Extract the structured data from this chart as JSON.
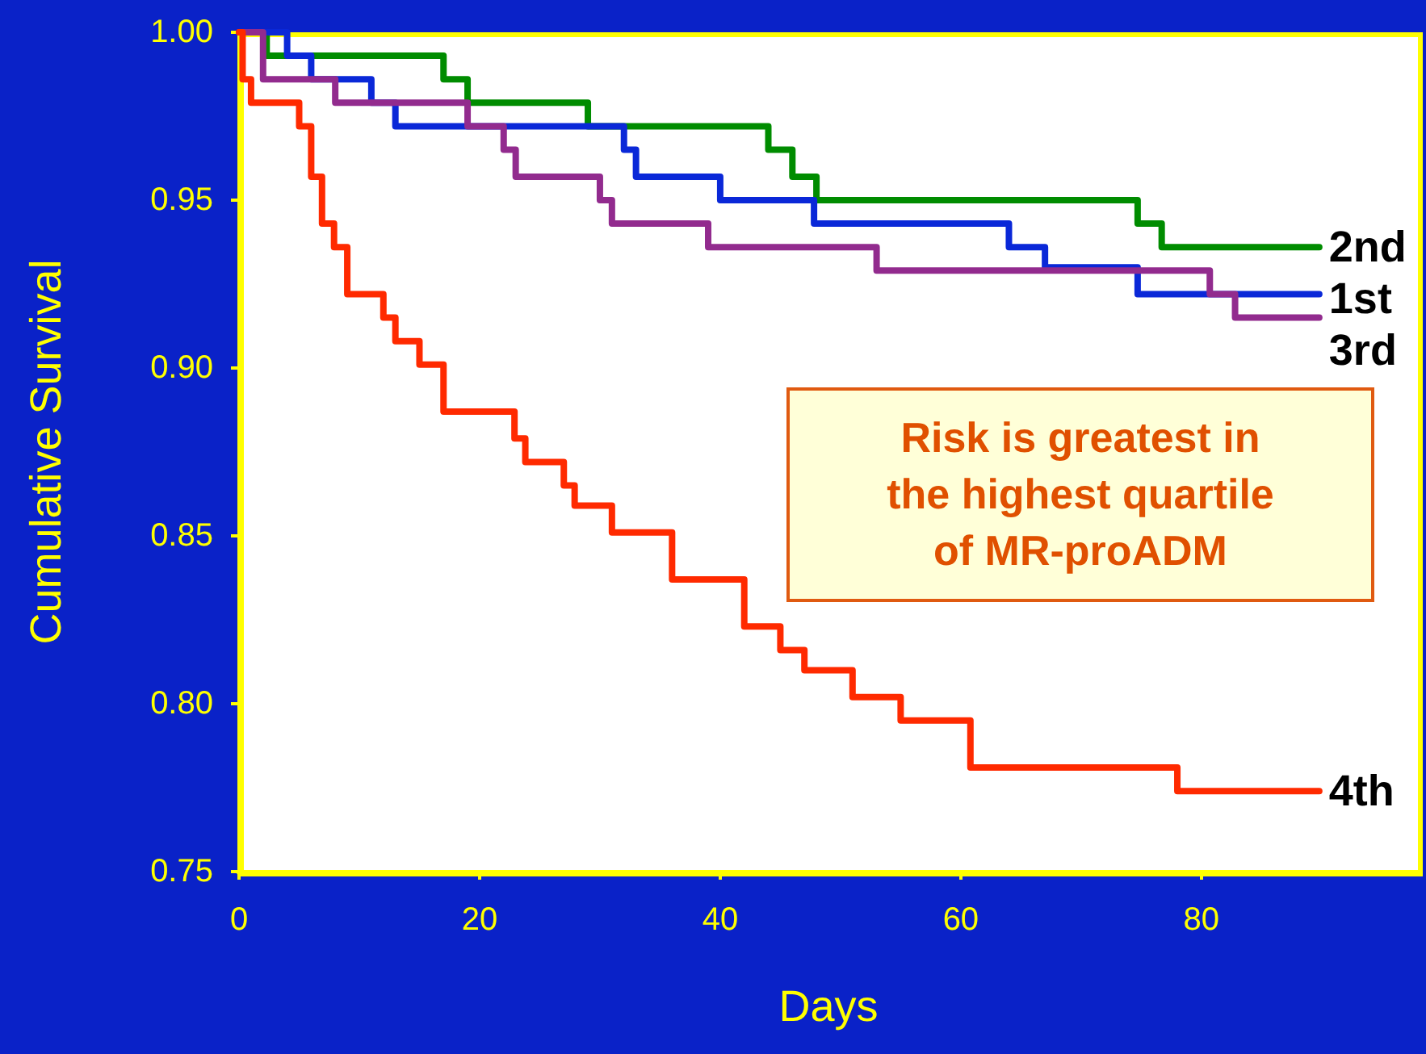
{
  "chart_data": {
    "type": "step",
    "xlabel": "Days",
    "ylabel": "Cumulative Survival",
    "annotations": [
      "Risk is greatest in\nthe highest quartile\nof MR-proADM"
    ],
    "xlim": [
      0,
      98
    ],
    "xticks": [
      0,
      20,
      40,
      60,
      80
    ],
    "ylim": [
      0.75,
      1.0
    ],
    "yticks": [
      {
        "value": 0.75,
        "label": "0.75"
      },
      {
        "value": 0.8,
        "label": "0.80"
      },
      {
        "value": 0.85,
        "label": "0.85"
      },
      {
        "value": 0.9,
        "label": "0.90"
      },
      {
        "value": 0.95,
        "label": "0.95"
      },
      {
        "value": 1.0,
        "label": "1.00"
      }
    ],
    "grid": false,
    "legend": false,
    "marker": "none",
    "line_style": "solid",
    "series": [
      {
        "name": "2nd",
        "color": "#008c00",
        "x": [
          0,
          2.3,
          17,
          19,
          29,
          44,
          46,
          48,
          74.7,
          76.7,
          89.8
        ],
        "values": [
          1.0,
          0.993,
          0.986,
          0.979,
          0.972,
          0.965,
          0.957,
          0.95,
          0.943,
          0.936,
          0.936
        ]
      },
      {
        "name": "1st",
        "color": "#0a28d8",
        "x": [
          0,
          4,
          6,
          11,
          13,
          32,
          33,
          40,
          47.8,
          64,
          67,
          74.7,
          89.8
        ],
        "values": [
          1.0,
          0.993,
          0.986,
          0.979,
          0.972,
          0.965,
          0.957,
          0.95,
          0.943,
          0.936,
          0.93,
          0.922,
          0.922
        ]
      },
      {
        "name": "3rd",
        "color": "#922b8e",
        "x": [
          0,
          2,
          8,
          19,
          22,
          23,
          30,
          31,
          39,
          53,
          80.7,
          82.8,
          89.8
        ],
        "values": [
          1.0,
          0.986,
          0.979,
          0.972,
          0.965,
          0.957,
          0.95,
          0.943,
          0.936,
          0.929,
          0.922,
          0.915,
          0.915
        ]
      },
      {
        "name": "4th",
        "color": "#ff2a00",
        "x": [
          0,
          0.3,
          1,
          5,
          6,
          6.9,
          7.9,
          9,
          12,
          13,
          15,
          17,
          22.9,
          23.8,
          27,
          27.9,
          31,
          36,
          42,
          45,
          47,
          51,
          55,
          60.8,
          78,
          89.8
        ],
        "values": [
          1.0,
          0.986,
          0.979,
          0.972,
          0.957,
          0.943,
          0.936,
          0.922,
          0.915,
          0.908,
          0.901,
          0.887,
          0.879,
          0.872,
          0.865,
          0.859,
          0.851,
          0.837,
          0.823,
          0.816,
          0.81,
          0.802,
          0.795,
          0.781,
          0.774,
          0.774
        ]
      }
    ]
  }
}
